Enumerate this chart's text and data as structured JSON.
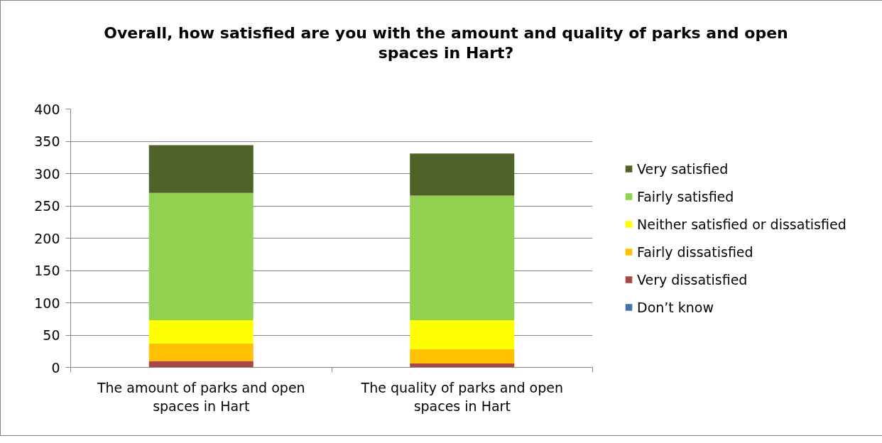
{
  "chart_data": {
    "type": "bar",
    "title": "Overall, how satisfied are you with the amount and quality of parks and open spaces in Hart?",
    "categories": [
      "The amount of parks and open spaces in Hart",
      "The quality of parks and open spaces in Hart"
    ],
    "stacked": true,
    "series": [
      {
        "name": "Don’t know",
        "color": "#4572a7",
        "values": [
          0,
          0
        ]
      },
      {
        "name": "Very dissatisfied",
        "color": "#aa4643",
        "values": [
          10,
          6
        ]
      },
      {
        "name": "Fairly dissatisfied",
        "color": "#ffc000",
        "values": [
          27,
          22
        ]
      },
      {
        "name": "Neither satisfied or dissatisfied",
        "color": "#ffff00",
        "values": [
          36,
          45
        ]
      },
      {
        "name": "Fairly satisfied",
        "color": "#92d050",
        "values": [
          197,
          193
        ]
      },
      {
        "name": "Very satisfied",
        "color": "#4f6228",
        "values": [
          74,
          65
        ]
      }
    ],
    "ylim": [
      0,
      400
    ],
    "yticks": [
      0,
      50,
      100,
      150,
      200,
      250,
      300,
      350,
      400
    ],
    "grid": "y",
    "legend": "right"
  }
}
